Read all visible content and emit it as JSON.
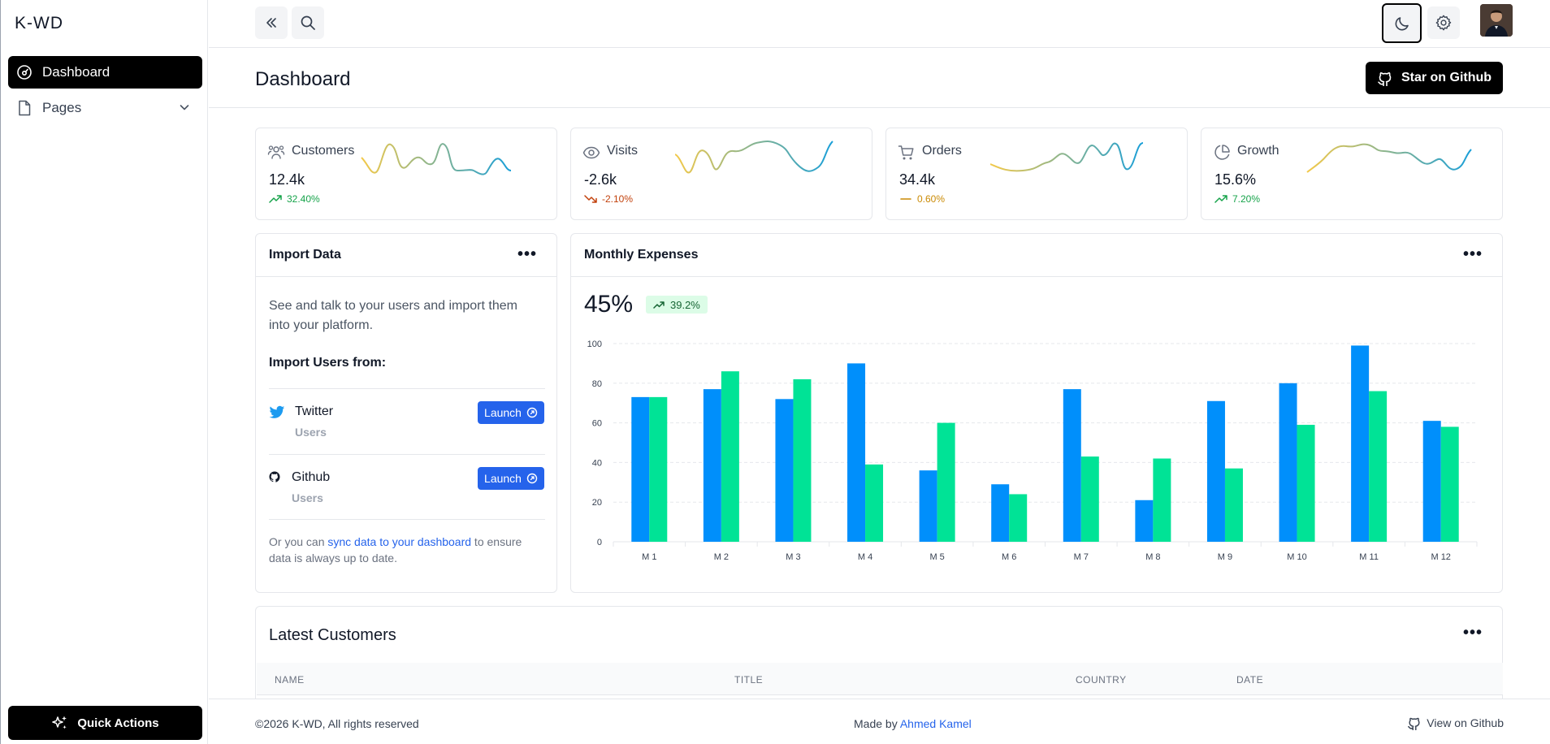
{
  "sidebar": {
    "brand": "K-WD",
    "items": [
      {
        "label": "Dashboard",
        "icon": "dashboard-icon",
        "active": true
      },
      {
        "label": "Pages",
        "icon": "document-icon",
        "active": false
      }
    ],
    "quick_actions_label": "Quick Actions"
  },
  "page": {
    "title": "Dashboard",
    "star_label": "Star on Github"
  },
  "stats": [
    {
      "label": "Customers",
      "icon": "users-icon",
      "value": "12.4k",
      "change": "32.40%",
      "trend": "up",
      "color": "#16a34a"
    },
    {
      "label": "Visits",
      "icon": "eye-icon",
      "value": "-2.6k",
      "change": "-2.10%",
      "trend": "down",
      "color": "#c2410c"
    },
    {
      "label": "Orders",
      "icon": "cart-icon",
      "value": "34.4k",
      "change": "0.60%",
      "trend": "flat",
      "color": "#ca8a04"
    },
    {
      "label": "Growth",
      "icon": "pie-icon",
      "value": "15.6%",
      "change": "7.20%",
      "trend": "up",
      "color": "#16a34a"
    }
  ],
  "import": {
    "title": "Import Data",
    "description": "See and talk to your users and import them into your platform.",
    "subtitle": "Import Users from:",
    "sources": [
      {
        "name": "Twitter",
        "sub": "Users",
        "button": "Launch"
      },
      {
        "name": "Github",
        "sub": "Users",
        "button": "Launch"
      }
    ],
    "note_before": "Or you can ",
    "note_link": "sync data to your dashboard",
    "note_after": " to ensure data is always up to date."
  },
  "expenses": {
    "title": "Monthly Expenses",
    "big_value": "45%",
    "badge": "39.2%"
  },
  "chart_data": {
    "type": "bar",
    "categories": [
      "M 1",
      "M 2",
      "M 3",
      "M 4",
      "M 5",
      "M 6",
      "M 7",
      "M 8",
      "M 9",
      "M 10",
      "M 11",
      "M 12"
    ],
    "series": [
      {
        "values": [
          73,
          77,
          72,
          90,
          36,
          29,
          77,
          21,
          71,
          80,
          99,
          61
        ],
        "color": "#008ffb"
      },
      {
        "values": [
          73,
          86,
          82,
          39,
          60,
          24,
          43,
          42,
          37,
          59,
          76,
          58
        ],
        "color": "#00e396"
      }
    ],
    "yticks": [
      "0",
      "20",
      "40",
      "60",
      "80",
      "100"
    ],
    "ylim": [
      0,
      100
    ],
    "grid": true
  },
  "customers": {
    "title": "Latest Customers",
    "columns": [
      "NAME",
      "TITLE",
      "COUNTRY",
      "DATE"
    ]
  },
  "footer": {
    "copyright": "©2026 K-WD, All rights reserved",
    "made_by_prefix": "Made by ",
    "made_by_name": "Ahmed Kamel",
    "github_label": "View on Github"
  }
}
